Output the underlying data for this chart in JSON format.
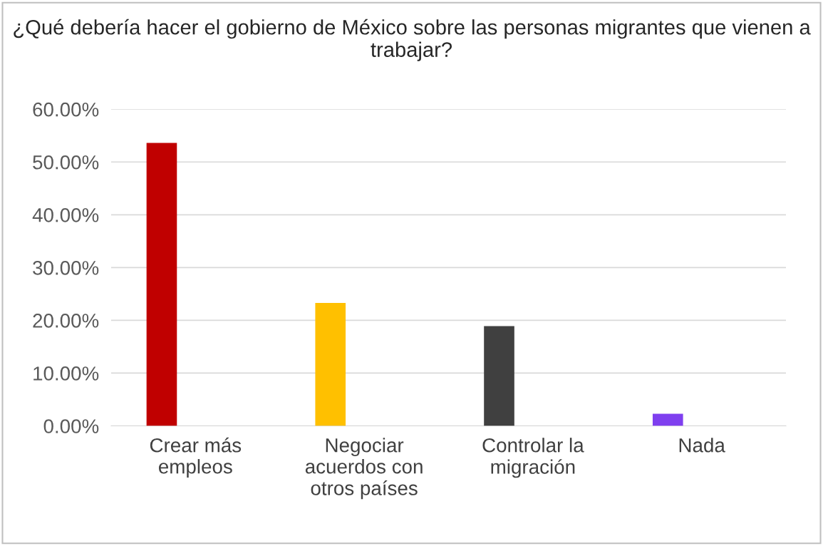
{
  "chart_data": {
    "type": "bar",
    "title": "¿Qué debería hacer el gobierno de México sobre las personas migrantes que vienen a trabajar?",
    "categories": [
      "Crear más\nempleos",
      "Negociar\nacuerdos con\notros países",
      "Controlar la\nmigración",
      "Nada"
    ],
    "values": [
      53.6,
      23.3,
      18.9,
      2.3
    ],
    "colors": [
      "#c00000",
      "#ffc000",
      "#404040",
      "#7f3fef"
    ],
    "ylim": [
      0,
      60
    ],
    "yticks": [
      {
        "value": 0,
        "label": "0.00%"
      },
      {
        "value": 10,
        "label": "10.00%"
      },
      {
        "value": 20,
        "label": "20.00%"
      },
      {
        "value": 30,
        "label": "30.00%"
      },
      {
        "value": 40,
        "label": "40.00%"
      },
      {
        "value": 50,
        "label": "50.00%"
      },
      {
        "value": 60,
        "label": "60.00%"
      }
    ],
    "grid": "y"
  }
}
